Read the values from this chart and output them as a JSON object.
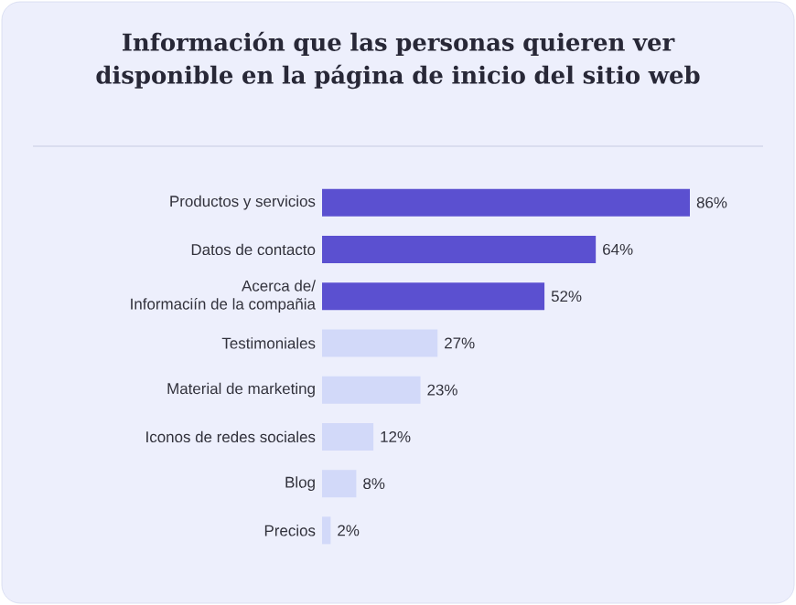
{
  "chart_data": {
    "type": "bar",
    "orientation": "horizontal",
    "title": "Información que las personas quieren ver disponible en la página de inicio del sitio web",
    "categories": [
      "Productos y servicios",
      "Datos de contacto",
      "Acerca de/\nInformaciín de la compañia",
      "Testimoniales",
      "Material de marketing",
      "Iconos de redes sociales",
      "Blog",
      "Precios"
    ],
    "values": [
      86,
      64,
      52,
      27,
      23,
      12,
      8,
      2
    ],
    "value_labels": [
      "86%",
      "64%",
      "52%",
      "27%",
      "23%",
      "12%",
      "8%",
      "2%"
    ],
    "colors": [
      "#5b50d0",
      "#5b50d0",
      "#5b50d0",
      "#d2d9f9",
      "#d2d9f9",
      "#d2d9f9",
      "#d2d9f9",
      "#d2d9f9"
    ]
  }
}
